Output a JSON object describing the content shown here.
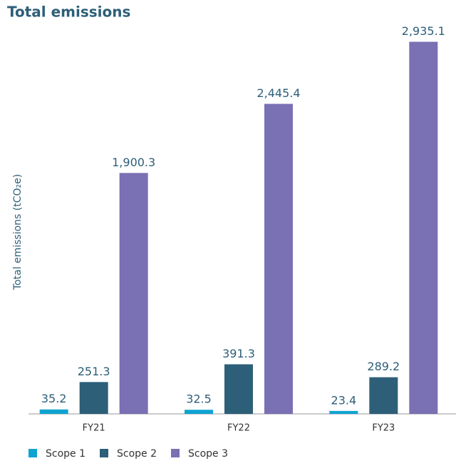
{
  "chart_data": {
    "type": "bar",
    "title": "Total emissions",
    "y_label": "Total emissions (tCO₂e)",
    "categories": [
      "FY21",
      "FY22",
      "FY23"
    ],
    "ylim": [
      0,
      3000
    ],
    "series": [
      {
        "name": "Scope 1",
        "color": "#0fa3d1",
        "values": [
          35.2,
          32.5,
          23.4
        ],
        "value_labels": [
          "35.2",
          "32.5",
          "23.4"
        ]
      },
      {
        "name": "Scope 2",
        "color": "#2d5f78",
        "values": [
          251.3,
          391.3,
          289.2
        ],
        "value_labels": [
          "251.3",
          "391.3",
          "289.2"
        ]
      },
      {
        "name": "Scope 3",
        "color": "#7a70b4",
        "values": [
          1900.3,
          2445.4,
          2935.1
        ],
        "value_labels": [
          "1,900.3",
          "2,445.4",
          "2,935.1"
        ]
      }
    ]
  }
}
